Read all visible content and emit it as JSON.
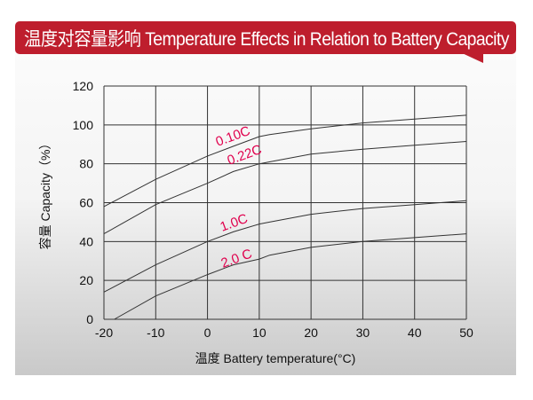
{
  "header": {
    "title": "温度对容量影响 Temperature Effects in Relation to Battery Capacity",
    "color": "#be1e2d"
  },
  "chart_data": {
    "type": "line",
    "title": "温度对容量影响 Temperature Effects in Relation to Battery Capacity",
    "xlabel": "温度  Battery temperature(°C)",
    "ylabel": "容量 Capacity（%）",
    "xlim": [
      -20,
      50
    ],
    "ylim": [
      0,
      120
    ],
    "xticks": [
      "-20",
      "-10",
      "0",
      "10",
      "20",
      "30",
      "40",
      "50"
    ],
    "yticks": [
      "0",
      "20",
      "40",
      "60",
      "80",
      "100",
      "120"
    ],
    "grid": true,
    "label_color": "#e0004d",
    "series": [
      {
        "name": "0.10C",
        "x": [
          -20,
          -10,
          0,
          5,
          10,
          12,
          20,
          30,
          40,
          50
        ],
        "y": [
          58,
          72,
          84,
          89,
          94,
          95,
          98,
          101,
          103,
          105
        ]
      },
      {
        "name": "0.22C",
        "x": [
          -20,
          -10,
          0,
          5,
          10,
          12,
          20,
          30,
          40,
          50
        ],
        "y": [
          44,
          59,
          70,
          76,
          80,
          81,
          85,
          87.5,
          89.5,
          91.5
        ]
      },
      {
        "name": "1.0C",
        "x": [
          -20,
          -10,
          0,
          5,
          10,
          12,
          20,
          30,
          40,
          50
        ],
        "y": [
          14,
          28,
          40,
          45,
          49,
          50,
          54,
          57,
          59,
          61
        ]
      },
      {
        "name": "2.0 C",
        "x": [
          -18,
          -10,
          0,
          5,
          10,
          12,
          20,
          30,
          40,
          50
        ],
        "y": [
          0,
          12,
          23,
          28,
          31,
          33,
          37,
          40,
          42,
          44
        ]
      }
    ]
  }
}
